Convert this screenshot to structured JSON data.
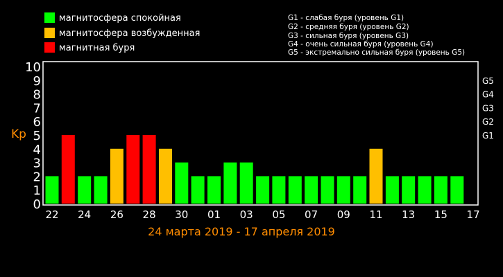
{
  "legend": {
    "items": [
      {
        "label": "магнитосфера спокойная",
        "color": "#00ff00"
      },
      {
        "label": "магнитосфера возбужденная",
        "color": "#ffbf00"
      },
      {
        "label": "магнитная буря",
        "color": "#ff0000"
      }
    ]
  },
  "storm_legend": [
    "G1 - слабая буря (уровень G1)",
    "G2 - средняя буря (уровень G2)",
    "G3 - сильная буря (уровень G3)",
    "G4 - очень сильная буря (уровень G4)",
    "G5 - экстремально сильная буря (уровень G5)"
  ],
  "chart_data": {
    "type": "bar",
    "title": "",
    "ylabel": "Kp",
    "xlabel": "24 марта 2019 - 17 апреля 2019",
    "ylim": [
      0,
      10
    ],
    "y_ticks": [
      "0",
      "1",
      "2",
      "3",
      "4",
      "5",
      "6",
      "7",
      "8",
      "9",
      "10"
    ],
    "right_ticks": [
      {
        "label": "G1",
        "value": 5
      },
      {
        "label": "G2",
        "value": 6
      },
      {
        "label": "G3",
        "value": 7
      },
      {
        "label": "G4",
        "value": 8
      },
      {
        "label": "G5",
        "value": 9
      }
    ],
    "x_tick_labels": [
      "22",
      "24",
      "26",
      "28",
      "30",
      "01",
      "03",
      "05",
      "07",
      "09",
      "11",
      "13",
      "15",
      "17"
    ],
    "values": [
      2,
      5,
      2,
      2,
      4,
      5,
      5,
      4,
      3,
      2,
      2,
      3,
      3,
      2,
      2,
      2,
      2,
      2,
      2,
      2,
      4,
      2,
      2,
      2,
      2,
      2
    ],
    "colors": {
      "quiet": "#00ff00",
      "active": "#ffbf00",
      "storm": "#ff0000"
    },
    "grid": false
  }
}
